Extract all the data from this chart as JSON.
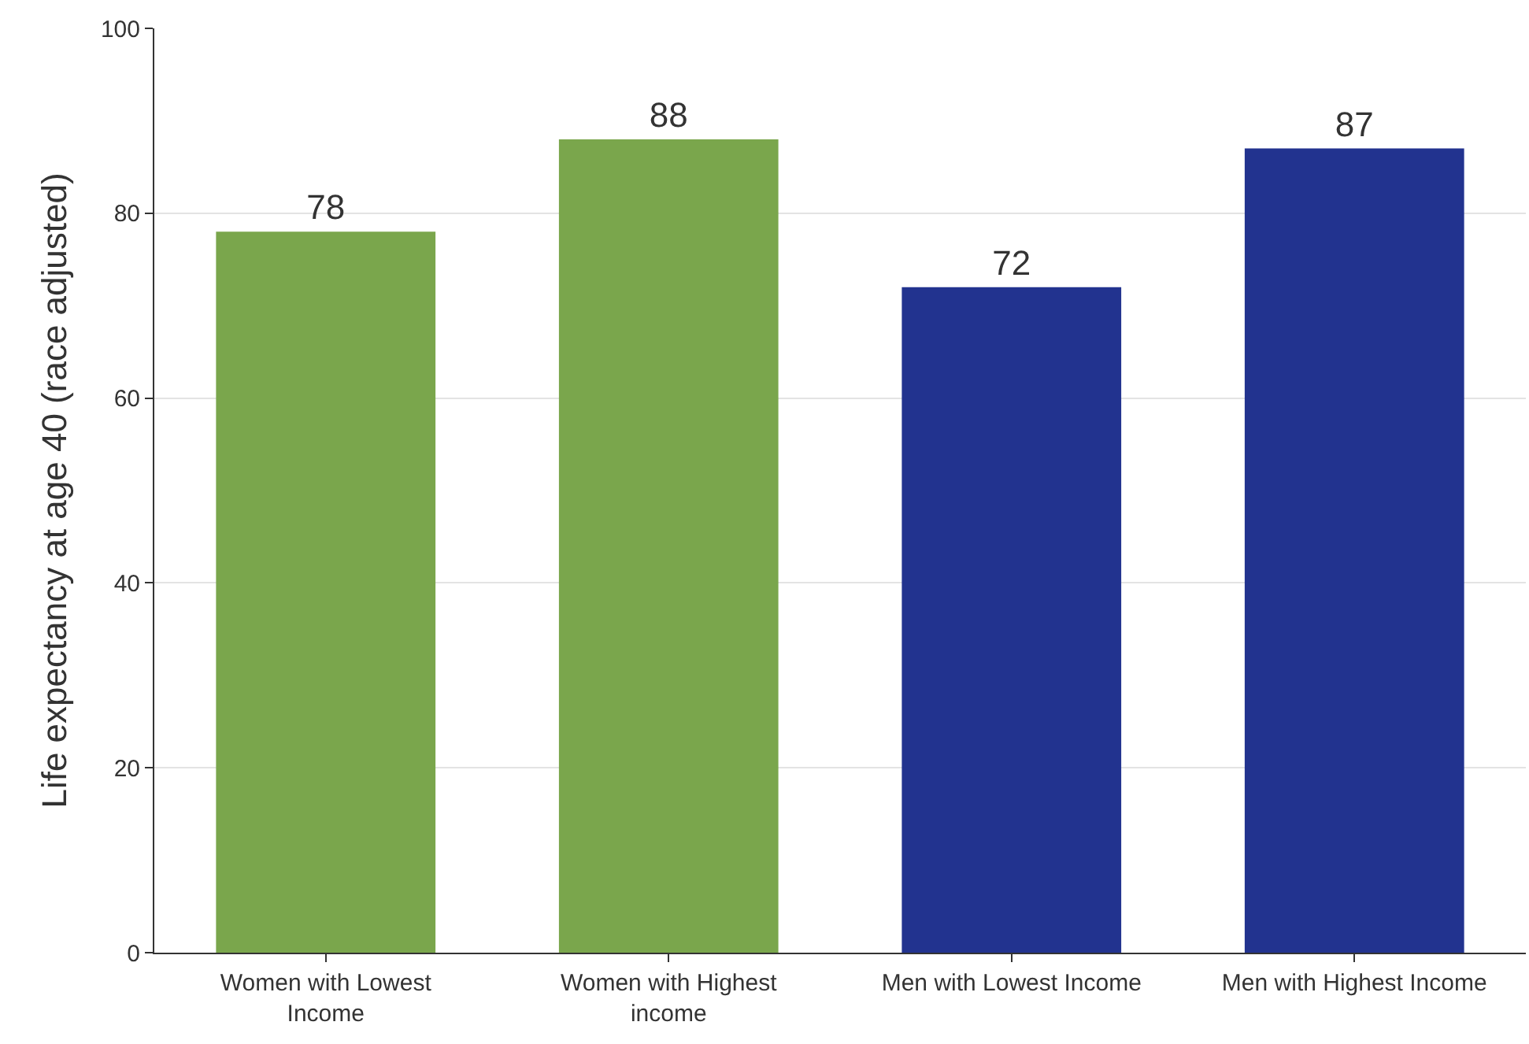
{
  "chart_data": {
    "type": "bar",
    "ylabel": "Life expectancy at age 40 (race adjusted)",
    "categories": [
      "Women with Lowest Income",
      "Women with Highest income",
      "Men with Lowest Income",
      "Men with Highest Income"
    ],
    "values": [
      78,
      88,
      72,
      87
    ],
    "colors": [
      "#7aa64c",
      "#7aa64c",
      "#22338f",
      "#22338f"
    ],
    "ylim": [
      0,
      100
    ],
    "yticks": [
      0,
      20,
      40,
      60,
      80,
      100
    ],
    "grid": "y",
    "data_labels": true
  }
}
